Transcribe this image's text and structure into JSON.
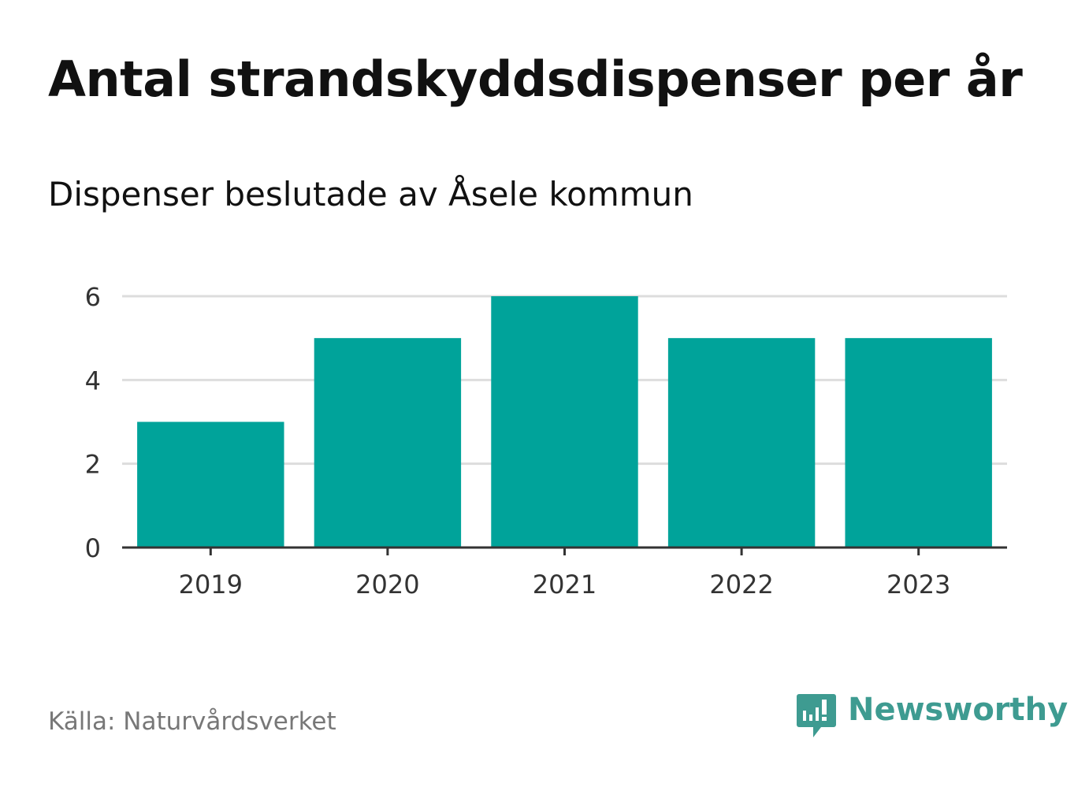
{
  "title": "Antal strandskyddsdispenser per år",
  "subtitle": "Dispenser beslutade av Åsele kommun",
  "source": "Källa: Naturvårdsverket",
  "brand": {
    "name": "Newsworthy",
    "icon": "newsworthy-logo-icon",
    "color": "#3e9b91"
  },
  "colors": {
    "bar": "#00a39a",
    "grid": "#dddddd",
    "axis": "#333333"
  },
  "chart_data": {
    "type": "bar",
    "title": "Antal strandskyddsdispenser per år",
    "subtitle": "Dispenser beslutade av Åsele kommun",
    "xlabel": "",
    "ylabel": "",
    "categories": [
      "2019",
      "2020",
      "2021",
      "2022",
      "2023"
    ],
    "values": [
      3,
      5,
      6,
      5,
      5
    ],
    "ylim": [
      0,
      6
    ],
    "yticks": [
      0,
      2,
      4,
      6
    ],
    "grid": true,
    "legend": "none"
  }
}
